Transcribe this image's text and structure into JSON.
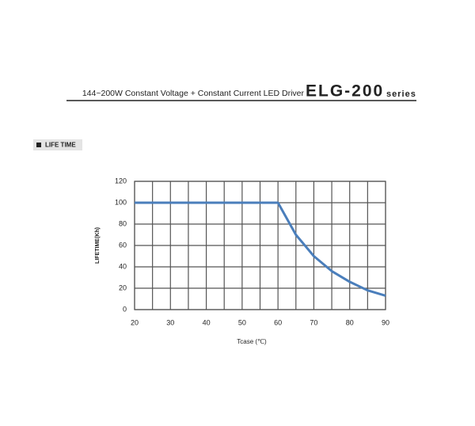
{
  "header": {
    "description": "144~200W Constant Voltage + Constant Current LED Driver",
    "model": "ELG-200",
    "series": "series"
  },
  "section": {
    "title": "LIFE TIME"
  },
  "chart_data": {
    "type": "line",
    "x_label": "Tcase (℃)",
    "y_label": "LIFETIME(Kh)",
    "x": [
      20,
      60,
      65,
      70,
      75,
      80,
      85,
      90
    ],
    "values": [
      100,
      100,
      70,
      50,
      36,
      26,
      18,
      13
    ],
    "color": "#4a7ebb",
    "xlim": [
      20,
      90
    ],
    "xticks": [
      20,
      30,
      40,
      50,
      60,
      70,
      80,
      90
    ],
    "x_minor_ticks": [
      25,
      35,
      45,
      55,
      65,
      75,
      85
    ],
    "ylim": [
      0,
      120
    ],
    "yticks": [
      0,
      20,
      40,
      60,
      80,
      100,
      120
    ],
    "grid": true
  }
}
